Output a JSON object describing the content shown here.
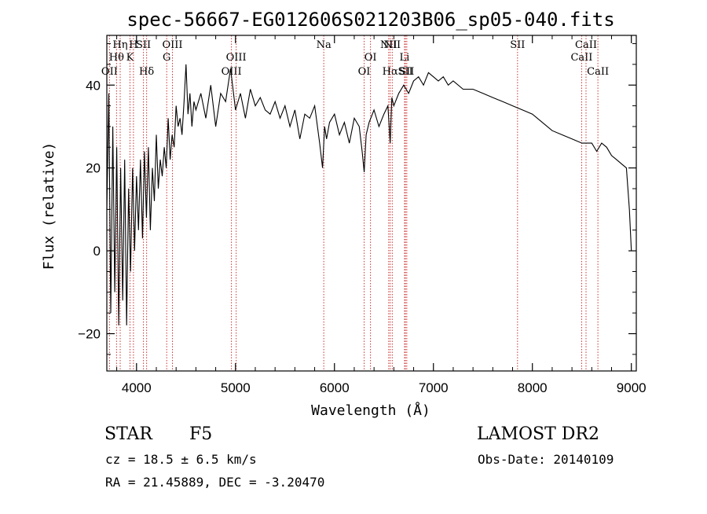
{
  "chart_data": {
    "type": "line",
    "title": "spec-56667-EG012606S021203B06_sp05-040.fits",
    "xlabel": "Wavelength (Å)",
    "ylabel": "Flux (relative)",
    "xlim": [
      3700,
      9050
    ],
    "ylim": [
      -29,
      52
    ],
    "x_ticks": [
      4000,
      5000,
      6000,
      7000,
      8000,
      9000
    ],
    "x_tick_labels": [
      "4000",
      "5000",
      "6000",
      "7000",
      "8000",
      "9000"
    ],
    "y_ticks": [
      -20,
      0,
      20,
      40
    ],
    "y_tick_labels": [
      "−20",
      "0",
      "20",
      "40"
    ],
    "grid": false,
    "series": [
      {
        "color": "#000000",
        "x": [
          3700,
          3720,
          3740,
          3760,
          3780,
          3800,
          3820,
          3840,
          3860,
          3880,
          3900,
          3920,
          3940,
          3960,
          3980,
          4000,
          4020,
          4040,
          4060,
          4080,
          4100,
          4120,
          4140,
          4160,
          4180,
          4200,
          4220,
          4240,
          4260,
          4280,
          4300,
          4320,
          4340,
          4360,
          4380,
          4400,
          4420,
          4440,
          4460,
          4480,
          4500,
          4520,
          4540,
          4560,
          4580,
          4600,
          4650,
          4700,
          4750,
          4800,
          4850,
          4900,
          4950,
          5000,
          5050,
          5100,
          5150,
          5200,
          5250,
          5300,
          5350,
          5400,
          5450,
          5500,
          5550,
          5600,
          5650,
          5700,
          5750,
          5800,
          5850,
          5880,
          5900,
          5920,
          5950,
          6000,
          6050,
          6100,
          6150,
          6200,
          6250,
          6280,
          6300,
          6320,
          6350,
          6400,
          6450,
          6500,
          6540,
          6563,
          6580,
          6600,
          6650,
          6700,
          6750,
          6800,
          6850,
          6900,
          6950,
          7000,
          7050,
          7100,
          7150,
          7200,
          7300,
          7400,
          7500,
          7600,
          7700,
          7800,
          7900,
          8000,
          8100,
          8200,
          8300,
          8400,
          8500,
          8600,
          8650,
          8700,
          8750,
          8800,
          8850,
          8900,
          8950,
          8980,
          9000
        ],
        "y": [
          10,
          38,
          -15,
          30,
          -10,
          25,
          -18,
          20,
          -12,
          22,
          -18,
          15,
          -5,
          20,
          0,
          18,
          5,
          22,
          3,
          24,
          8,
          25,
          5,
          20,
          12,
          28,
          15,
          22,
          18,
          25,
          20,
          32,
          22,
          28,
          25,
          35,
          30,
          32,
          28,
          36,
          45,
          33,
          38,
          30,
          36,
          34,
          38,
          32,
          40,
          30,
          38,
          36,
          44,
          34,
          38,
          32,
          39,
          35,
          37,
          34,
          33,
          36,
          32,
          35,
          30,
          34,
          27,
          33,
          32,
          35,
          26,
          20,
          30,
          27,
          31,
          33,
          28,
          31,
          26,
          32,
          30,
          24,
          19,
          28,
          31,
          34,
          30,
          33,
          35,
          26,
          37,
          35,
          38,
          40,
          38,
          41,
          42,
          40,
          43,
          42,
          41,
          42,
          40,
          41,
          39,
          39,
          38,
          37,
          36,
          35,
          34,
          33,
          31,
          29,
          28,
          27,
          26,
          26,
          24,
          26,
          25,
          23,
          22,
          21,
          20,
          10,
          0
        ]
      }
    ],
    "spectral_lines": [
      {
        "label": "OII",
        "x": 3727,
        "row": 3
      },
      {
        "label": "Hθ",
        "x": 3798,
        "row": 2
      },
      {
        "label": "Hη",
        "x": 3835,
        "row": 1
      },
      {
        "label": "K",
        "x": 3934,
        "row": 2
      },
      {
        "label": "H",
        "x": 3969,
        "row": 1
      },
      {
        "label": "SII",
        "x": 4070,
        "row": 1
      },
      {
        "label": "Hδ",
        "x": 4102,
        "row": 3
      },
      {
        "label": "G",
        "x": 4305,
        "row": 2
      },
      {
        "label": "OIII",
        "x": 4363,
        "row": 1
      },
      {
        "label": "OIII",
        "x": 4959,
        "row": 3
      },
      {
        "label": "OIII",
        "x": 5007,
        "row": 2
      },
      {
        "label": "Na",
        "x": 5892,
        "row": 1
      },
      {
        "label": "OI",
        "x": 6300,
        "row": 3
      },
      {
        "label": "OI",
        "x": 6364,
        "row": 2
      },
      {
        "label": "NII",
        "x": 6548,
        "row": 1
      },
      {
        "label": "Hα",
        "x": 6563,
        "row": 3
      },
      {
        "label": "NII",
        "x": 6584,
        "row": 1
      },
      {
        "label": "SII",
        "x": 6717,
        "row": 3
      },
      {
        "label": "Li",
        "x": 6708,
        "row": 2
      },
      {
        "label": "SII",
        "x": 6731,
        "row": 3
      },
      {
        "label": "SII",
        "x": 7850,
        "row": 1
      },
      {
        "label": "CaII",
        "x": 8498,
        "row": 2
      },
      {
        "label": "CaII",
        "x": 8542,
        "row": 1
      },
      {
        "label": "CaII",
        "x": 8662,
        "row": 3
      }
    ],
    "line_colors": {
      "spectrum": "#000000",
      "markers": "#cc3333"
    }
  },
  "info": {
    "object_class": "STAR",
    "subclass": "F5",
    "survey": "LAMOST DR2",
    "redshift": "cz = 18.5 ± 6.5 km/s",
    "obs_date": "Obs-Date: 20140109",
    "coords": "RA =  21.45889, DEC =  -3.20470"
  }
}
